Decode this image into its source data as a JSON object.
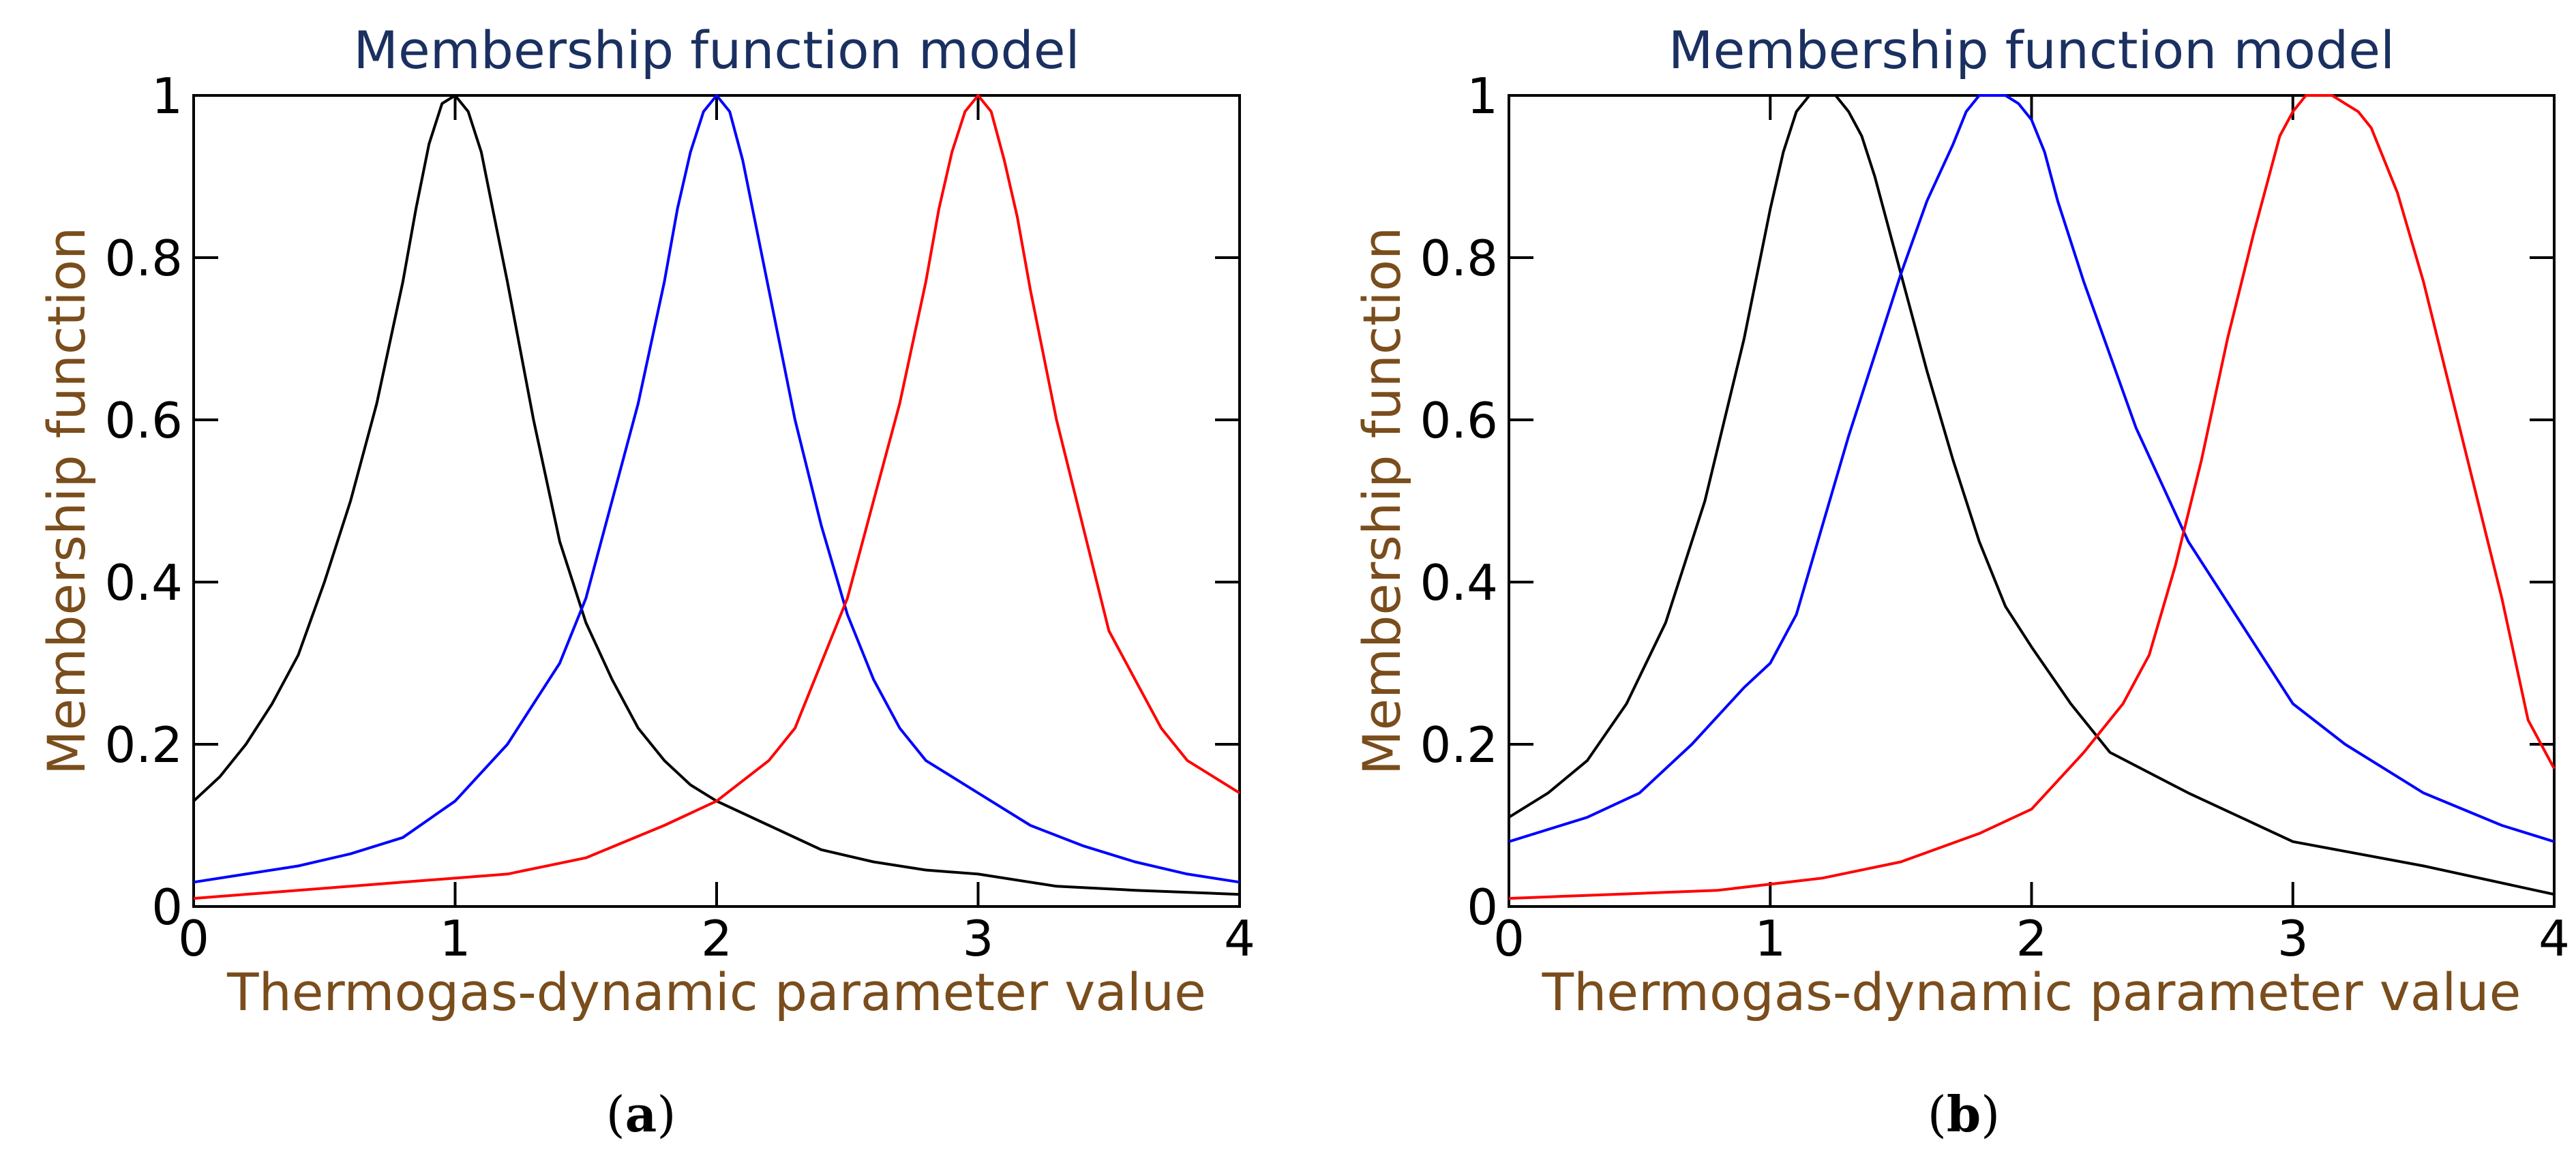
{
  "chart_data": [
    {
      "type": "line",
      "panel": "a",
      "caption_open": "(",
      "caption_letter": "a",
      "caption_close": ")",
      "title": "Membership function model",
      "xlabel": "Thermogas-dynamic parameter value",
      "ylabel": "Membership function",
      "xlim": [
        0,
        4
      ],
      "ylim": [
        0,
        1
      ],
      "xticks": [
        0,
        1,
        2,
        3,
        4
      ],
      "xtick_labels": [
        "0",
        "1",
        "2",
        "3",
        "4"
      ],
      "yticks": [
        0,
        0.2,
        0.4,
        0.6,
        0.8,
        1
      ],
      "ytick_labels": [
        "0",
        "0.2",
        "0.4",
        "0.6",
        "0.8",
        "1"
      ],
      "grid": false,
      "series": [
        {
          "name": "black curve",
          "color": "#000000",
          "x": [
            0,
            0.1,
            0.2,
            0.3,
            0.4,
            0.5,
            0.6,
            0.7,
            0.8,
            0.85,
            0.9,
            0.95,
            1.0,
            1.05,
            1.1,
            1.15,
            1.2,
            1.3,
            1.4,
            1.5,
            1.6,
            1.7,
            1.8,
            1.9,
            2.0,
            2.2,
            2.4,
            2.6,
            2.8,
            3.0,
            3.3,
            3.6,
            4.0
          ],
          "y": [
            0.13,
            0.16,
            0.2,
            0.25,
            0.31,
            0.4,
            0.5,
            0.62,
            0.77,
            0.86,
            0.94,
            0.99,
            1.0,
            0.98,
            0.93,
            0.85,
            0.77,
            0.6,
            0.45,
            0.35,
            0.28,
            0.22,
            0.18,
            0.15,
            0.13,
            0.1,
            0.07,
            0.055,
            0.045,
            0.04,
            0.025,
            0.02,
            0.015
          ]
        },
        {
          "name": "blue curve",
          "color": "#0000ff",
          "x": [
            0,
            0.2,
            0.4,
            0.6,
            0.8,
            1.0,
            1.2,
            1.3,
            1.4,
            1.5,
            1.6,
            1.7,
            1.8,
            1.85,
            1.9,
            1.95,
            2.0,
            2.05,
            2.1,
            2.15,
            2.2,
            2.3,
            2.4,
            2.5,
            2.6,
            2.7,
            2.8,
            3.0,
            3.2,
            3.4,
            3.6,
            3.8,
            4.0
          ],
          "y": [
            0.03,
            0.04,
            0.05,
            0.065,
            0.085,
            0.13,
            0.2,
            0.25,
            0.3,
            0.38,
            0.5,
            0.62,
            0.77,
            0.86,
            0.93,
            0.98,
            1.0,
            0.98,
            0.92,
            0.84,
            0.76,
            0.6,
            0.47,
            0.36,
            0.28,
            0.22,
            0.18,
            0.14,
            0.1,
            0.075,
            0.055,
            0.04,
            0.03
          ]
        },
        {
          "name": "red curve",
          "color": "#ff0000",
          "x": [
            0,
            0.4,
            0.8,
            1.2,
            1.5,
            1.8,
            2.0,
            2.2,
            2.3,
            2.4,
            2.5,
            2.6,
            2.7,
            2.8,
            2.85,
            2.9,
            2.95,
            3.0,
            3.05,
            3.1,
            3.15,
            3.2,
            3.3,
            3.4,
            3.5,
            3.6,
            3.7,
            3.8,
            3.9,
            4.0
          ],
          "y": [
            0.01,
            0.02,
            0.03,
            0.04,
            0.06,
            0.1,
            0.13,
            0.18,
            0.22,
            0.3,
            0.38,
            0.5,
            0.62,
            0.77,
            0.86,
            0.93,
            0.98,
            1.0,
            0.98,
            0.92,
            0.85,
            0.76,
            0.6,
            0.47,
            0.34,
            0.28,
            0.22,
            0.18,
            0.16,
            0.14
          ]
        }
      ]
    },
    {
      "type": "line",
      "panel": "b",
      "caption_open": "(",
      "caption_letter": "b",
      "caption_close": ")",
      "title": "Membership function model",
      "xlabel": "Thermogas-dynamic parameter value",
      "ylabel": "Membership function",
      "xlim": [
        0,
        4
      ],
      "ylim": [
        0,
        1
      ],
      "xticks": [
        0,
        1,
        2,
        3,
        4
      ],
      "xtick_labels": [
        "0",
        "1",
        "2",
        "3",
        "4"
      ],
      "yticks": [
        0,
        0.2,
        0.4,
        0.6,
        0.8,
        1
      ],
      "ytick_labels": [
        "0",
        "0.2",
        "0.4",
        "0.6",
        "0.8",
        "1"
      ],
      "grid": false,
      "series": [
        {
          "name": "black curve",
          "color": "#000000",
          "x": [
            0,
            0.15,
            0.3,
            0.45,
            0.6,
            0.75,
            0.9,
            1.0,
            1.05,
            1.1,
            1.15,
            1.2,
            1.25,
            1.3,
            1.35,
            1.4,
            1.5,
            1.6,
            1.7,
            1.8,
            1.9,
            2.0,
            2.15,
            2.3,
            2.6,
            3.0,
            3.5,
            4.0
          ],
          "y": [
            0.11,
            0.14,
            0.18,
            0.25,
            0.35,
            0.5,
            0.7,
            0.86,
            0.93,
            0.98,
            1.0,
            1.0,
            1.0,
            0.98,
            0.95,
            0.9,
            0.78,
            0.66,
            0.55,
            0.45,
            0.37,
            0.32,
            0.25,
            0.19,
            0.14,
            0.08,
            0.05,
            0.015
          ]
        },
        {
          "name": "blue curve",
          "color": "#0000ff",
          "x": [
            0,
            0.3,
            0.5,
            0.7,
            0.9,
            1.0,
            1.1,
            1.2,
            1.3,
            1.4,
            1.5,
            1.6,
            1.7,
            1.75,
            1.8,
            1.85,
            1.9,
            1.95,
            2.0,
            2.05,
            2.1,
            2.2,
            2.3,
            2.4,
            2.5,
            2.6,
            2.8,
            3.0,
            3.2,
            3.5,
            3.8,
            4.0
          ],
          "y": [
            0.08,
            0.11,
            0.14,
            0.2,
            0.27,
            0.3,
            0.36,
            0.47,
            0.58,
            0.68,
            0.78,
            0.87,
            0.94,
            0.98,
            1.0,
            1.0,
            1.0,
            0.99,
            0.97,
            0.93,
            0.87,
            0.77,
            0.68,
            0.59,
            0.52,
            0.45,
            0.35,
            0.25,
            0.2,
            0.14,
            0.1,
            0.08
          ]
        },
        {
          "name": "red curve",
          "color": "#ff0000",
          "x": [
            0,
            0.4,
            0.8,
            1.2,
            1.5,
            1.8,
            2.0,
            2.2,
            2.35,
            2.45,
            2.55,
            2.65,
            2.75,
            2.85,
            2.95,
            3.0,
            3.05,
            3.1,
            3.15,
            3.2,
            3.25,
            3.3,
            3.4,
            3.5,
            3.6,
            3.7,
            3.8,
            3.9,
            4.0
          ],
          "y": [
            0.01,
            0.015,
            0.02,
            0.035,
            0.055,
            0.09,
            0.12,
            0.19,
            0.25,
            0.31,
            0.42,
            0.55,
            0.7,
            0.83,
            0.95,
            0.98,
            1.0,
            1.0,
            1.0,
            0.99,
            0.98,
            0.96,
            0.88,
            0.77,
            0.64,
            0.51,
            0.38,
            0.23,
            0.17
          ]
        }
      ]
    }
  ]
}
